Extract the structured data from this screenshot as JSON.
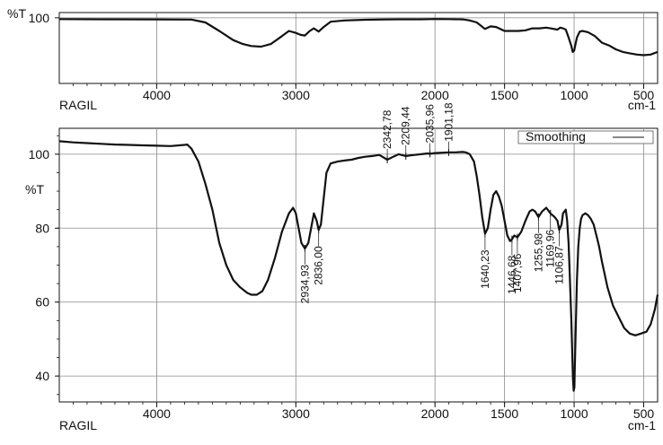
{
  "chart_data": [
    {
      "type": "line",
      "y_unit_label": "%T",
      "footer_left": "RAGIL",
      "footer_right": "cm-1",
      "xlim": [
        4700,
        400
      ],
      "ylim": [
        0,
        108
      ],
      "x_ticks": [
        4000,
        3000,
        2000,
        1500,
        1000,
        500
      ],
      "y_ticks": [
        100
      ],
      "grid": true,
      "series": [
        {
          "x": [
            4700,
            4400,
            4000,
            3750,
            3650,
            3550,
            3450,
            3380,
            3320,
            3250,
            3180,
            3100,
            3050,
            3000,
            2965,
            2935,
            2900,
            2870,
            2836,
            2800,
            2750,
            2650,
            2500,
            2350,
            2250,
            2100,
            2000,
            1900,
            1800,
            1750,
            1700,
            1640,
            1600,
            1560,
            1500,
            1450,
            1400,
            1350,
            1300,
            1250,
            1200,
            1170,
            1120,
            1100,
            1080,
            1060,
            1040,
            1020,
            1010,
            1000,
            980,
            960,
            940,
            900,
            850,
            800,
            750,
            700,
            650,
            600,
            550,
            500,
            450,
            400
          ],
          "y": [
            98,
            97.8,
            97.6,
            97.4,
            93,
            80,
            66,
            60,
            57,
            56,
            60,
            72,
            80,
            77,
            74,
            73,
            80,
            84,
            79,
            86,
            94,
            96,
            97,
            97.6,
            97.7,
            97.8,
            98.2,
            98,
            97.6,
            96,
            93,
            83,
            87,
            86,
            80,
            80,
            80,
            81,
            84,
            84,
            85,
            84,
            82,
            85,
            84,
            82,
            70,
            57,
            48,
            50,
            70,
            79,
            80,
            78,
            72,
            62,
            58,
            52,
            48,
            46,
            44,
            43,
            44,
            48
          ]
        }
      ]
    },
    {
      "type": "line",
      "y_unit_label": "%T",
      "footer_left": "RAGIL",
      "footer_right": "cm-1",
      "legend": "Smoothing",
      "legend_position": "top-right",
      "xlim": [
        4700,
        400
      ],
      "ylim": [
        33,
        107
      ],
      "x_ticks": [
        4000,
        3000,
        2000,
        1500,
        1000,
        500
      ],
      "y_ticks": [
        40,
        60,
        80,
        100
      ],
      "grid": true,
      "series": [
        {
          "name": "Smoothing",
          "x": [
            4700,
            4600,
            4500,
            4400,
            4300,
            4200,
            4100,
            4000,
            3900,
            3800,
            3780,
            3750,
            3700,
            3650,
            3600,
            3550,
            3500,
            3450,
            3400,
            3350,
            3320,
            3280,
            3240,
            3200,
            3150,
            3100,
            3050,
            3020,
            3000,
            2980,
            2960,
            2935,
            2910,
            2890,
            2870,
            2850,
            2836,
            2820,
            2800,
            2780,
            2750,
            2700,
            2650,
            2600,
            2550,
            2500,
            2450,
            2400,
            2342.78,
            2300,
            2260,
            2209.44,
            2150,
            2100,
            2050,
            2035.96,
            2000,
            1950,
            1901.18,
            1850,
            1800,
            1780,
            1750,
            1720,
            1700,
            1680,
            1660,
            1640.23,
            1620,
            1600,
            1580,
            1560,
            1540,
            1520,
            1500,
            1480,
            1460,
            1446.68,
            1430,
            1407.96,
            1380,
            1350,
            1320,
            1300,
            1280,
            1255.98,
            1230,
            1200,
            1169.96,
            1140,
            1120,
            1106.87,
            1090,
            1080,
            1060,
            1050,
            1040,
            1030,
            1020,
            1013,
            1008,
            1003,
            998,
            995,
            990,
            985,
            980,
            970,
            960,
            950,
            940,
            920,
            900,
            880,
            860,
            840,
            820,
            800,
            760,
            720,
            680,
            640,
            600,
            560,
            520,
            480,
            450,
            420,
            400
          ],
          "y": [
            103.5,
            103.2,
            103,
            102.8,
            102.6,
            102.5,
            102.4,
            102.3,
            102.2,
            102.5,
            102.6,
            101.5,
            98,
            92,
            85,
            76,
            70,
            66,
            64,
            62.5,
            62,
            62,
            63,
            66,
            72,
            79,
            84,
            85.5,
            84,
            80,
            76,
            74.5,
            76,
            80,
            84,
            82,
            79.5,
            81,
            88,
            95,
            97.5,
            98,
            98.3,
            98.5,
            99,
            99.3,
            99.5,
            99.8,
            98.5,
            99.3,
            100,
            99.5,
            99.8,
            100,
            100.2,
            100.1,
            100.3,
            100.4,
            100.5,
            100.5,
            100.6,
            100.5,
            100,
            98,
            94,
            89,
            83,
            78.5,
            80,
            85,
            89,
            90,
            88.5,
            86,
            82,
            78,
            76.5,
            77,
            78,
            77.5,
            79,
            82,
            84.5,
            85,
            84.5,
            83,
            84.5,
            85.5,
            84,
            83,
            82,
            79.5,
            81,
            84,
            85,
            82,
            76,
            66,
            55,
            45,
            39,
            36,
            37,
            42,
            50,
            58,
            66,
            75,
            80,
            82.5,
            83.5,
            84,
            83.5,
            82.5,
            81,
            78,
            75,
            71,
            64,
            59,
            56,
            53,
            51.5,
            51,
            51.5,
            52,
            54,
            58,
            62
          ]
        }
      ],
      "annotations": [
        "2934,93",
        "2836,00",
        "2342,78",
        "2209,44",
        "2035,96",
        "1901,18",
        "1640,23",
        "1446,68",
        "1407,96",
        "1255,98",
        "1169,96",
        "1106,87"
      ]
    }
  ]
}
